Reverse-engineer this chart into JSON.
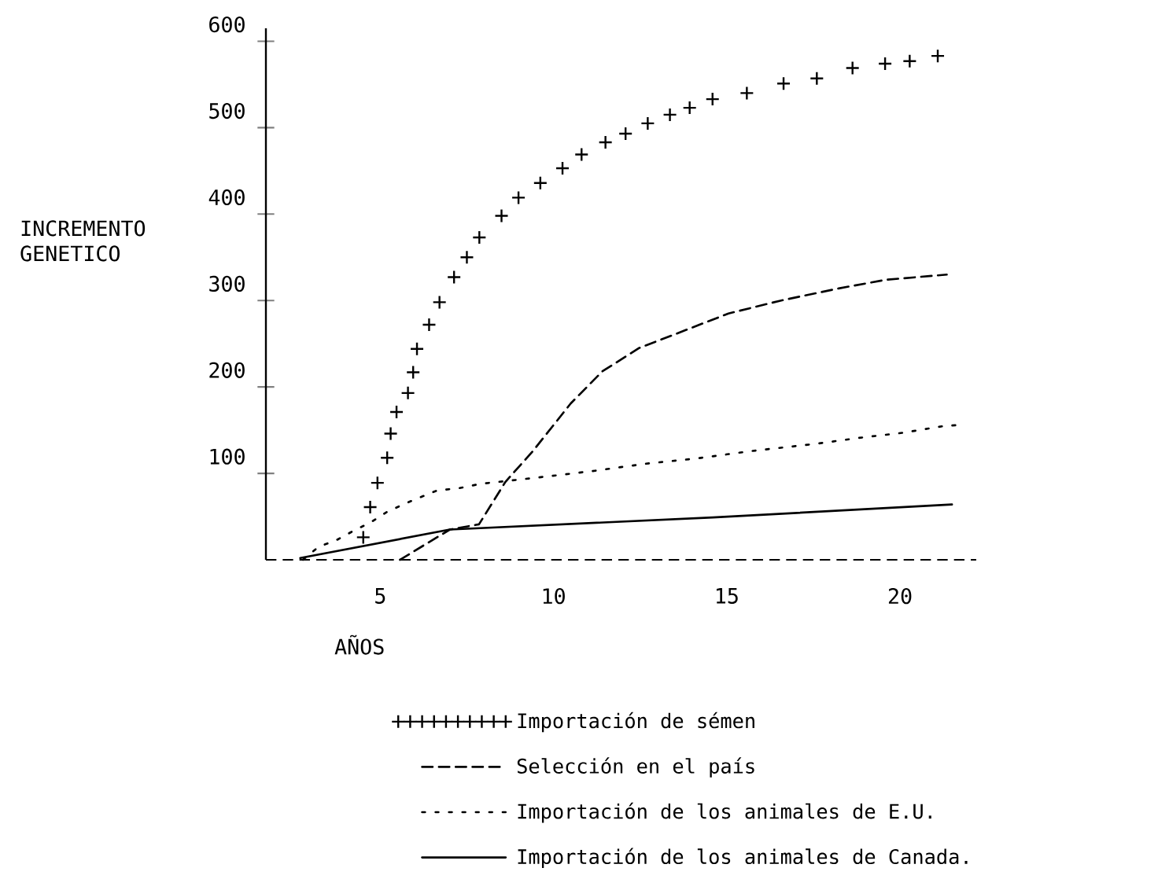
{
  "chart_data": {
    "type": "line",
    "xlabel": "AÑOS",
    "ylabel": "INCREMENTO GENETICO",
    "xlim": [
      1.7,
      22.2
    ],
    "ylim": [
      0,
      615
    ],
    "xticks": [
      5,
      10,
      15,
      20
    ],
    "yticks": [
      100,
      200,
      300,
      400,
      500,
      600
    ],
    "legend": "bottom",
    "grid": false,
    "ref_lines": [
      {
        "axis": "y",
        "value": 0,
        "line_style": "dashed"
      }
    ],
    "series": [
      {
        "name": "Importación de sémen",
        "type": "scatter",
        "marker": "cross",
        "color": "#000000",
        "x": [
          4.51,
          4.71,
          4.92,
          5.2,
          5.3,
          5.47,
          5.8,
          5.95,
          6.06,
          6.41,
          6.71,
          7.13,
          7.5,
          7.86,
          8.5,
          8.99,
          9.62,
          10.26,
          10.81,
          11.5,
          12.08,
          12.72,
          13.36,
          13.93,
          14.59,
          15.58,
          16.64,
          17.6,
          18.63,
          19.57,
          20.28,
          21.09
        ],
        "values": [
          26,
          61,
          89,
          118,
          146,
          171,
          193,
          217,
          244,
          272,
          298,
          327,
          350,
          373,
          398,
          419,
          436,
          453,
          469,
          483,
          493,
          505,
          515,
          523,
          533,
          540,
          551,
          557,
          569,
          574,
          577,
          583
        ]
      },
      {
        "name": "Selección en el país",
        "line_style": "dashed",
        "color": "#000000",
        "x": [
          5.57,
          7.01,
          7.85,
          8.61,
          9.41,
          10.5,
          11.41,
          12.47,
          13.38,
          15.05,
          16.57,
          18.23,
          19.6,
          21.35
        ],
        "values": [
          0,
          35,
          41,
          90,
          126,
          181,
          218,
          245,
          259,
          285,
          300,
          314,
          324,
          330
        ]
      },
      {
        "name": "Importación de los animales de E.U.",
        "line_style": "dotted",
        "color": "#000000",
        "x": [
          2.77,
          3.22,
          3.75,
          4.25,
          4.71,
          5.22,
          5.95,
          6.63,
          7.29,
          7.92,
          8.61,
          9.95,
          11.2,
          12.63,
          14.08,
          15.75,
          17.54,
          18.81,
          20.09,
          21.3,
          21.76
        ],
        "values": [
          0,
          15,
          23,
          34,
          43,
          56,
          69,
          80,
          83,
          88,
          91,
          97,
          103,
          111,
          117,
          126,
          134,
          141,
          147,
          155,
          156
        ]
      },
      {
        "name": "Importación de los animales de Canada.",
        "line_style": "solid",
        "color": "#000000",
        "x": [
          2.69,
          7.01,
          14.6,
          21.5
        ],
        "values": [
          2,
          35,
          49,
          64
        ]
      }
    ]
  }
}
